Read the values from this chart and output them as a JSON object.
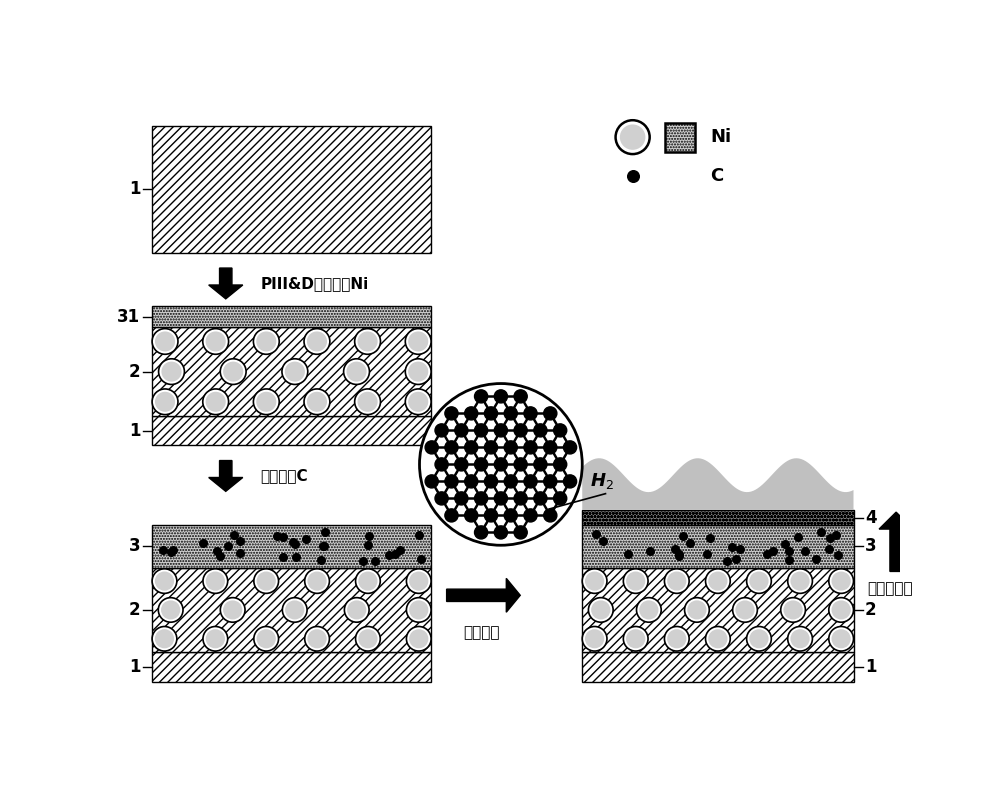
{
  "bg_color": "#ffffff",
  "label_1": "1",
  "label_2": "2",
  "label_3": "3",
  "label_4": "4",
  "label_31": "31",
  "arrow_label1": "PIII&D注入沉积Ni",
  "arrow_label2": "离子注入C",
  "arrow_label3": "退火处理",
  "arrow_label4": "阻止氢渗透",
  "h2_label": "H$_2$",
  "legend_ni": "Ni",
  "legend_c": "C",
  "ni_circle_fc": "#ffffff",
  "ni_circle_dot_fc": "#d0d0d0",
  "dotted_layer_fc": "#d0d0d0",
  "hatch_fc": "#ffffff",
  "cloud_fc": "#c8c8c8"
}
